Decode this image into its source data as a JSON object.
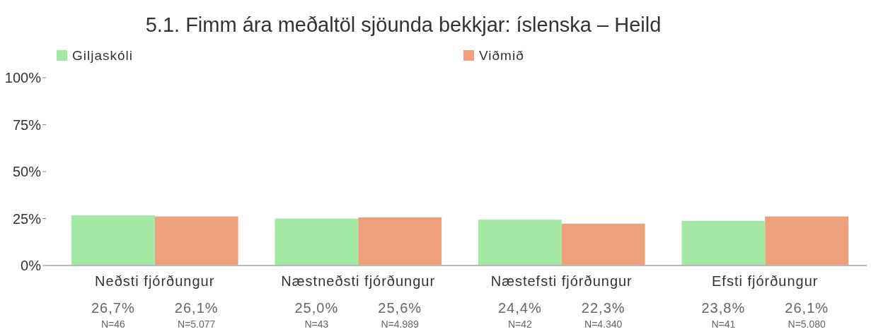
{
  "chart_data": {
    "type": "bar",
    "title": "5.1. Fimm ára meðaltöl sjöunda bekkjar: íslenska – Heild",
    "categories": [
      "Neðsti fjórðungur",
      "Næstneðsti fjórðungur",
      "Næstefsti fjórðungur",
      "Efsti fjórðungur"
    ],
    "series": [
      {
        "name": "Giljaskóli",
        "color": "#a3e9a4",
        "values": [
          26.7,
          25.0,
          24.4,
          23.8
        ],
        "value_labels": [
          "26,7%",
          "25,0%",
          "24,4%",
          "23,8%"
        ]
      },
      {
        "name": "Viðmið",
        "color": "#eda07a",
        "values": [
          26.1,
          25.6,
          22.3,
          26.1
        ],
        "value_labels": [
          "26,1%",
          "25,6%",
          "22,3%",
          "26,1%"
        ]
      }
    ],
    "ylim": [
      0,
      100
    ],
    "yticks": [
      {
        "value": 0,
        "label": "0%"
      },
      {
        "value": 25,
        "label": "25%"
      },
      {
        "value": 50,
        "label": "50%"
      },
      {
        "value": 75,
        "label": "75%"
      },
      {
        "value": 100,
        "label": "100%"
      }
    ],
    "annotations": [
      "N=46",
      "N=5.077",
      "N=43",
      "N=4.989",
      "N=42",
      "N=4.340",
      "N=41",
      "N=5.080"
    ],
    "legend": "top left",
    "grid": false
  }
}
